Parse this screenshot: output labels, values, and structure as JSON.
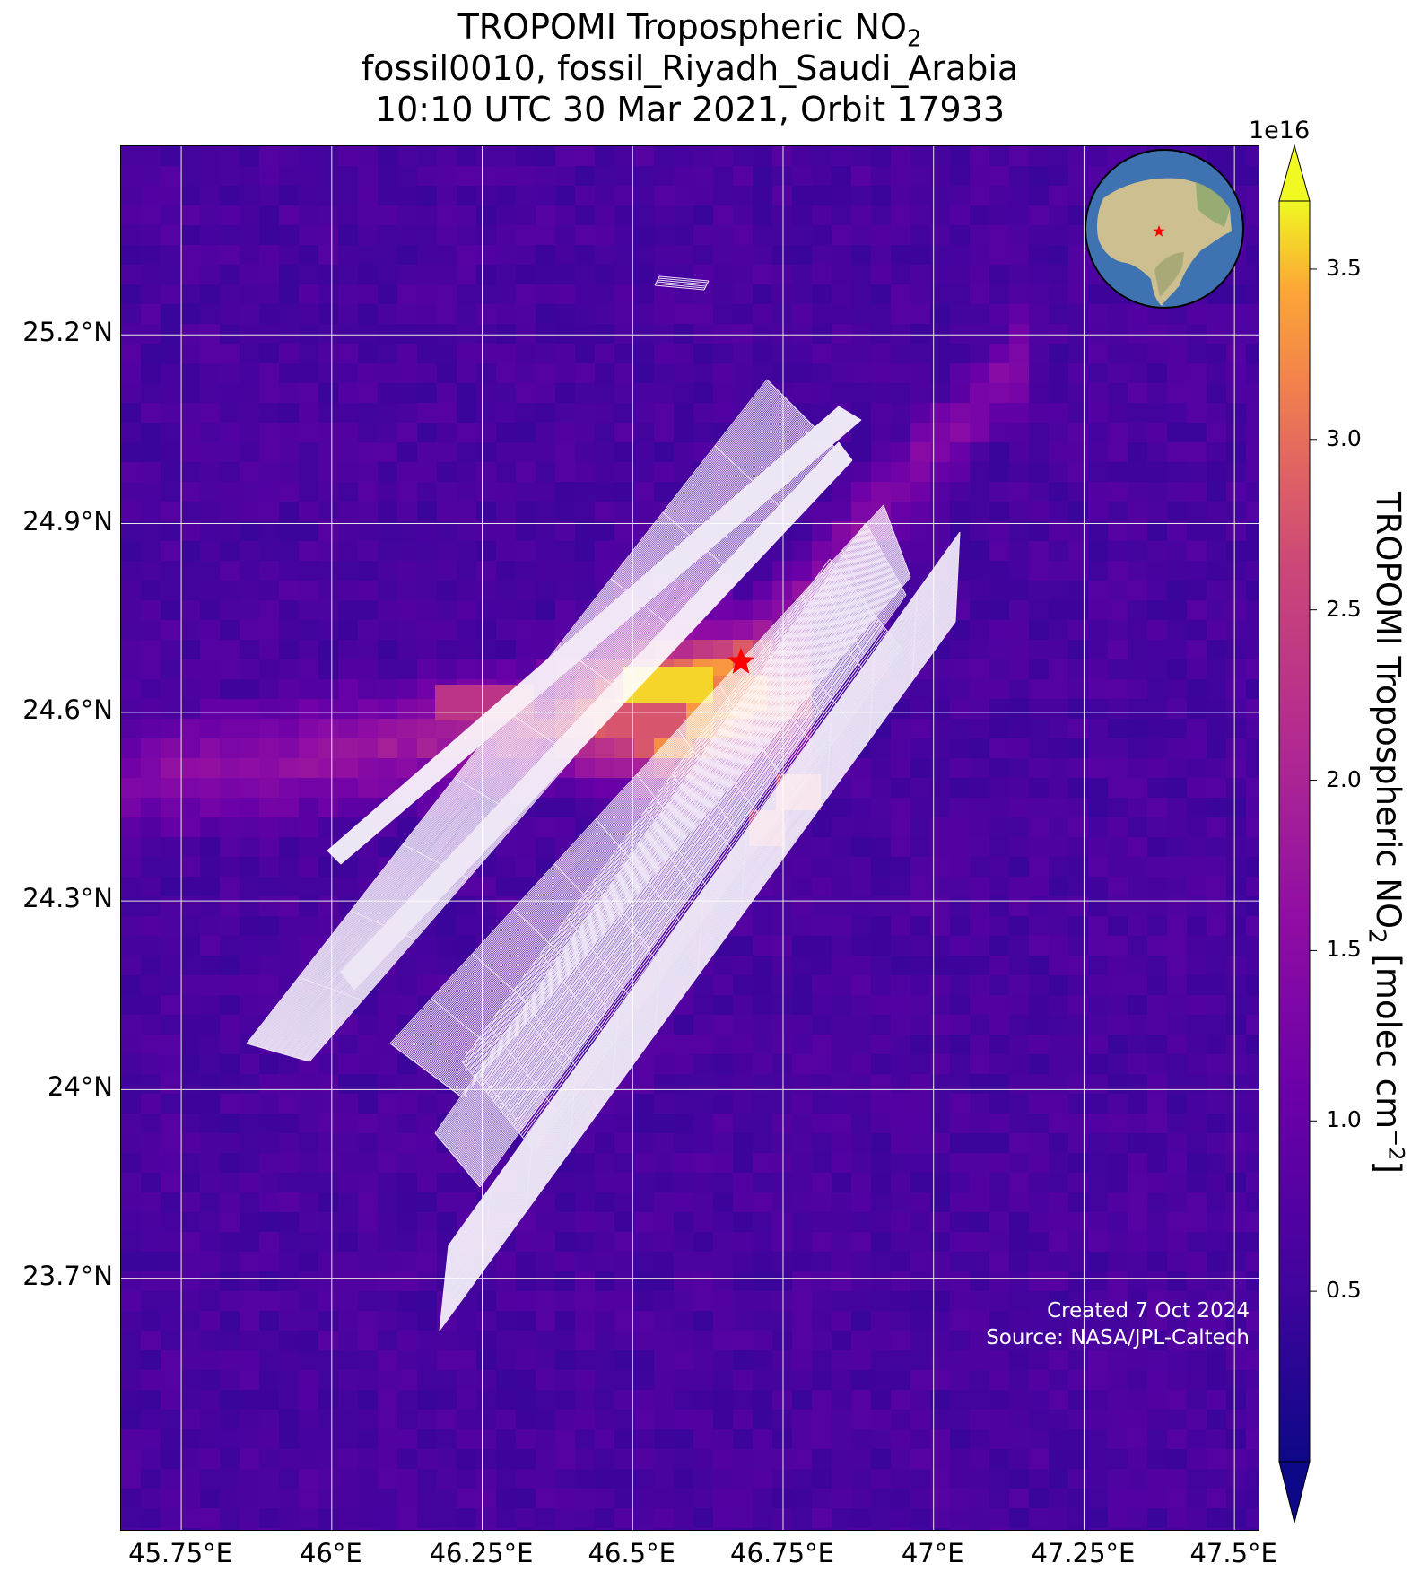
{
  "title": {
    "line1_main": "TROPOMI Tropospheric NO",
    "line1_sub": "2",
    "line2": "fossil0010, fossil_Riyadh_Saudi_Arabia",
    "line3": "10:10 UTC 30 Mar 2021, Orbit 17933"
  },
  "map": {
    "lon_range": [
      45.65,
      47.54
    ],
    "lat_range": [
      23.3,
      25.5
    ],
    "lon_ticks": [
      {
        "value": 45.75,
        "label": "45.75°E"
      },
      {
        "value": 46.0,
        "label": "46°E"
      },
      {
        "value": 46.25,
        "label": "46.25°E"
      },
      {
        "value": 46.5,
        "label": "46.5°E"
      },
      {
        "value": 46.75,
        "label": "46.75°E"
      },
      {
        "value": 47.0,
        "label": "47°E"
      },
      {
        "value": 47.25,
        "label": "47.25°E"
      },
      {
        "value": 47.5,
        "label": "47.5°E"
      }
    ],
    "lat_ticks": [
      {
        "value": 25.2,
        "label": "25.2°N"
      },
      {
        "value": 24.9,
        "label": "24.9°N"
      },
      {
        "value": 24.6,
        "label": "24.6°N"
      },
      {
        "value": 24.3,
        "label": "24.3°N"
      },
      {
        "value": 24.0,
        "label": "24°N"
      },
      {
        "value": 23.7,
        "label": "23.7°N"
      }
    ],
    "target_marker": {
      "lon": 46.68,
      "lat": 24.68,
      "color": "#ff0000",
      "icon": "star-icon"
    },
    "grid_color": "#e6e6e6",
    "inset_globe": {
      "icon": "globe-icon",
      "marker_color": "#ff0000",
      "ocean_color": "#3f72b0",
      "land_color": "#cdbf8f"
    }
  },
  "colorbar": {
    "multiplier": "1e16",
    "label_main": "TROPOMI Tropospheric NO",
    "label_sub": "2",
    "label_unit": " [molec cm",
    "label_sup": "−2",
    "label_close": "]",
    "range": [
      0.0,
      3.7
    ],
    "ticks": [
      {
        "value": 0.5,
        "label": "0.5"
      },
      {
        "value": 1.0,
        "label": "1.0"
      },
      {
        "value": 1.5,
        "label": "1.5"
      },
      {
        "value": 2.0,
        "label": "2.0"
      },
      {
        "value": 2.5,
        "label": "2.5"
      },
      {
        "value": 3.0,
        "label": "3.0"
      },
      {
        "value": 3.5,
        "label": "3.5"
      }
    ],
    "colormap": "plasma",
    "extend": "both"
  },
  "credits": {
    "created": "Created 7 Oct 2024",
    "source": "Source: NASA/JPL-Caltech"
  }
}
